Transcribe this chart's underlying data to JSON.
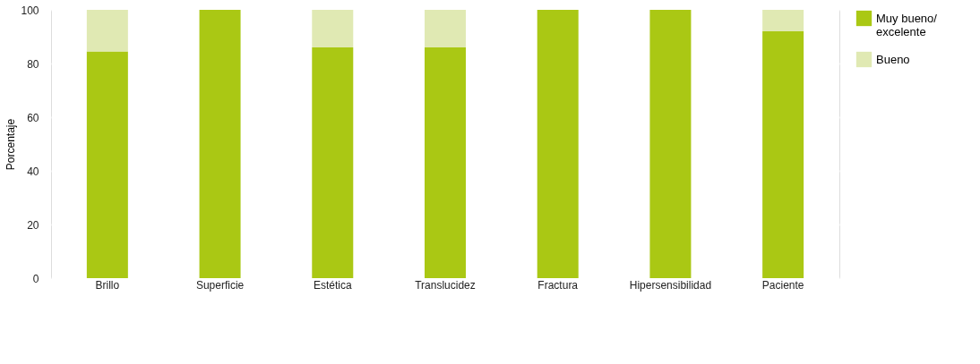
{
  "chart_data": {
    "type": "bar",
    "ylabel": "Porcentaje",
    "stacked": true,
    "categories": [
      "Brillo",
      "Superficie",
      "Estética",
      "Translucidez",
      "Fractura",
      "Hipersensibilidad",
      "Paciente"
    ],
    "series": [
      {
        "name": "Muy bueno/excelente",
        "color": "#aac814",
        "values": [
          84.5,
          100,
          86,
          86,
          100,
          100,
          92
        ]
      },
      {
        "name": "Bueno",
        "color": "#e0e9b3",
        "values": [
          15.5,
          0,
          14,
          14,
          0,
          0,
          8
        ]
      }
    ],
    "ylim": [
      0,
      100
    ],
    "yticks": [
      0,
      20,
      40,
      60,
      80,
      100
    ],
    "grid": "y",
    "legend": "top right"
  }
}
